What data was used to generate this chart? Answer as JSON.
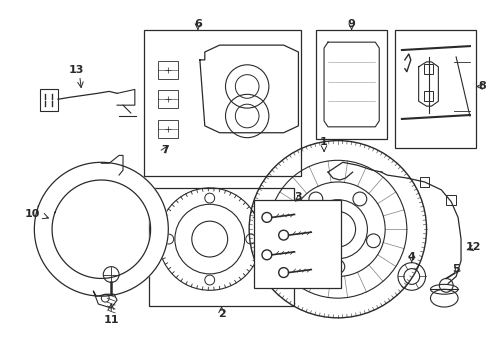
{
  "background_color": "#ffffff",
  "line_color": "#2a2a2a",
  "figsize": [
    4.9,
    3.6
  ],
  "dpi": 100
}
